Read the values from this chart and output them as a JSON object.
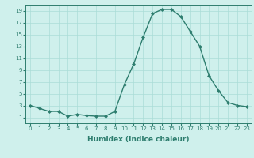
{
  "x": [
    0,
    1,
    2,
    3,
    4,
    5,
    6,
    7,
    8,
    9,
    10,
    11,
    12,
    13,
    14,
    15,
    16,
    17,
    18,
    19,
    20,
    21,
    22,
    23
  ],
  "y": [
    3.0,
    2.5,
    2.0,
    2.0,
    1.2,
    1.5,
    1.3,
    1.2,
    1.2,
    2.0,
    6.5,
    10.0,
    14.5,
    18.5,
    19.2,
    19.2,
    18.0,
    15.5,
    13.0,
    8.0,
    5.5,
    3.5,
    3.0,
    2.8
  ],
  "line_color": "#2d7d6e",
  "marker": "D",
  "marker_size": 2.0,
  "linewidth": 1.0,
  "bg_color": "#cff0ec",
  "grid_color": "#aaddd7",
  "xlabel": "Humidex (Indice chaleur)",
  "xlabel_fontsize": 6.5,
  "xlim": [
    -0.5,
    23.5
  ],
  "ylim": [
    0,
    20
  ],
  "xticks": [
    0,
    1,
    2,
    3,
    4,
    5,
    6,
    7,
    8,
    9,
    10,
    11,
    12,
    13,
    14,
    15,
    16,
    17,
    18,
    19,
    20,
    21,
    22,
    23
  ],
  "yticks": [
    1,
    3,
    5,
    7,
    9,
    11,
    13,
    15,
    17,
    19
  ],
  "tick_fontsize": 5.0
}
